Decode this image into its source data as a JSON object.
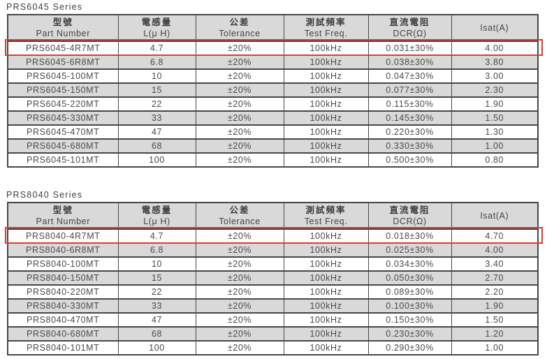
{
  "colors": {
    "highlight_border": "#e23b2e",
    "header_bg": "#d9d9d9",
    "alt_row_bg": "#d9d9d9",
    "table_border": "#474747",
    "text": "#4a4a4a"
  },
  "tables": [
    {
      "title": "PRS6045 Series",
      "columns": [
        {
          "zh": "型號",
          "en": "Part Number"
        },
        {
          "zh": "電感量",
          "en": "L(μ H)"
        },
        {
          "zh": "公差",
          "en": "Tolerance"
        },
        {
          "zh": "測試頻率",
          "en": "Test Freq."
        },
        {
          "zh": "直流電阻",
          "en": "DCR(Ω)"
        },
        {
          "zh": "",
          "en": "Isat(A)"
        }
      ],
      "highlighted_row": 0,
      "rows": [
        [
          "PRS6045-4R7MT",
          "4.7",
          "±20%",
          "100kHz",
          "0.031±30%",
          "4.00"
        ],
        [
          "PRS6045-6R8MT",
          "6.8",
          "±20%",
          "100kHz",
          "0.038±30%",
          "3.80"
        ],
        [
          "PRS6045-100MT",
          "10",
          "±20%",
          "100kHz",
          "0.047±30%",
          "3.00"
        ],
        [
          "PRS6045-150MT",
          "15",
          "±20%",
          "100kHz",
          "0.077±30%",
          "2.30"
        ],
        [
          "PRS6045-220MT",
          "22",
          "±20%",
          "100kHz",
          "0.115±30%",
          "1.90"
        ],
        [
          "PRS6045-330MT",
          "33",
          "±20%",
          "100kHz",
          "0.145±30%",
          "1.50"
        ],
        [
          "PRS6045-470MT",
          "47",
          "±20%",
          "100kHz",
          "0.220±30%",
          "1.30"
        ],
        [
          "PRS6045-680MT",
          "68",
          "±20%",
          "100kHz",
          "0.330±30%",
          "1.00"
        ],
        [
          "PRS6045-101MT",
          "100",
          "±20%",
          "100kHz",
          "0.500±30%",
          "0.80"
        ]
      ]
    },
    {
      "title": "PRS8040 Series",
      "columns": [
        {
          "zh": "型號",
          "en": "Part Number"
        },
        {
          "zh": "電感量",
          "en": "L(μ H)"
        },
        {
          "zh": "公差",
          "en": "Tolerance"
        },
        {
          "zh": "測試頻率",
          "en": "Test Freq."
        },
        {
          "zh": "直流電阻",
          "en": "DCR(Ω)"
        },
        {
          "zh": "",
          "en": "Isat(A)"
        }
      ],
      "highlighted_row": 0,
      "rows": [
        [
          "PRS8040-4R7MT",
          "4.7",
          "±20%",
          "100kHz",
          "0.018±30%",
          "4.70"
        ],
        [
          "PRS8040-6R8MT",
          "6.8",
          "±20%",
          "100kHz",
          "0.025±30%",
          "4.00"
        ],
        [
          "PRS8040-100MT",
          "10",
          "±20%",
          "100kHz",
          "0.034±30%",
          "3.40"
        ],
        [
          "PRS8040-150MT",
          "15",
          "±20%",
          "100kHz",
          "0.050±30%",
          "2.70"
        ],
        [
          "PRS8040-220MT",
          "22",
          "±20%",
          "100kHz",
          "0.089±30%",
          "2.20"
        ],
        [
          "PRS8040-330MT",
          "33",
          "±20%",
          "100kHz",
          "0.100±30%",
          "1.90"
        ],
        [
          "PRS8040-470MT",
          "47",
          "±20%",
          "100kHz",
          "0.150±30%",
          "1.50"
        ],
        [
          "PRS8040-680MT",
          "68",
          "±20%",
          "100kHz",
          "0.230±30%",
          "1.20"
        ],
        [
          "PRS8040-101MT",
          "100",
          "±20%",
          "100kHz",
          "0.290±30%",
          "1.00"
        ]
      ]
    }
  ]
}
